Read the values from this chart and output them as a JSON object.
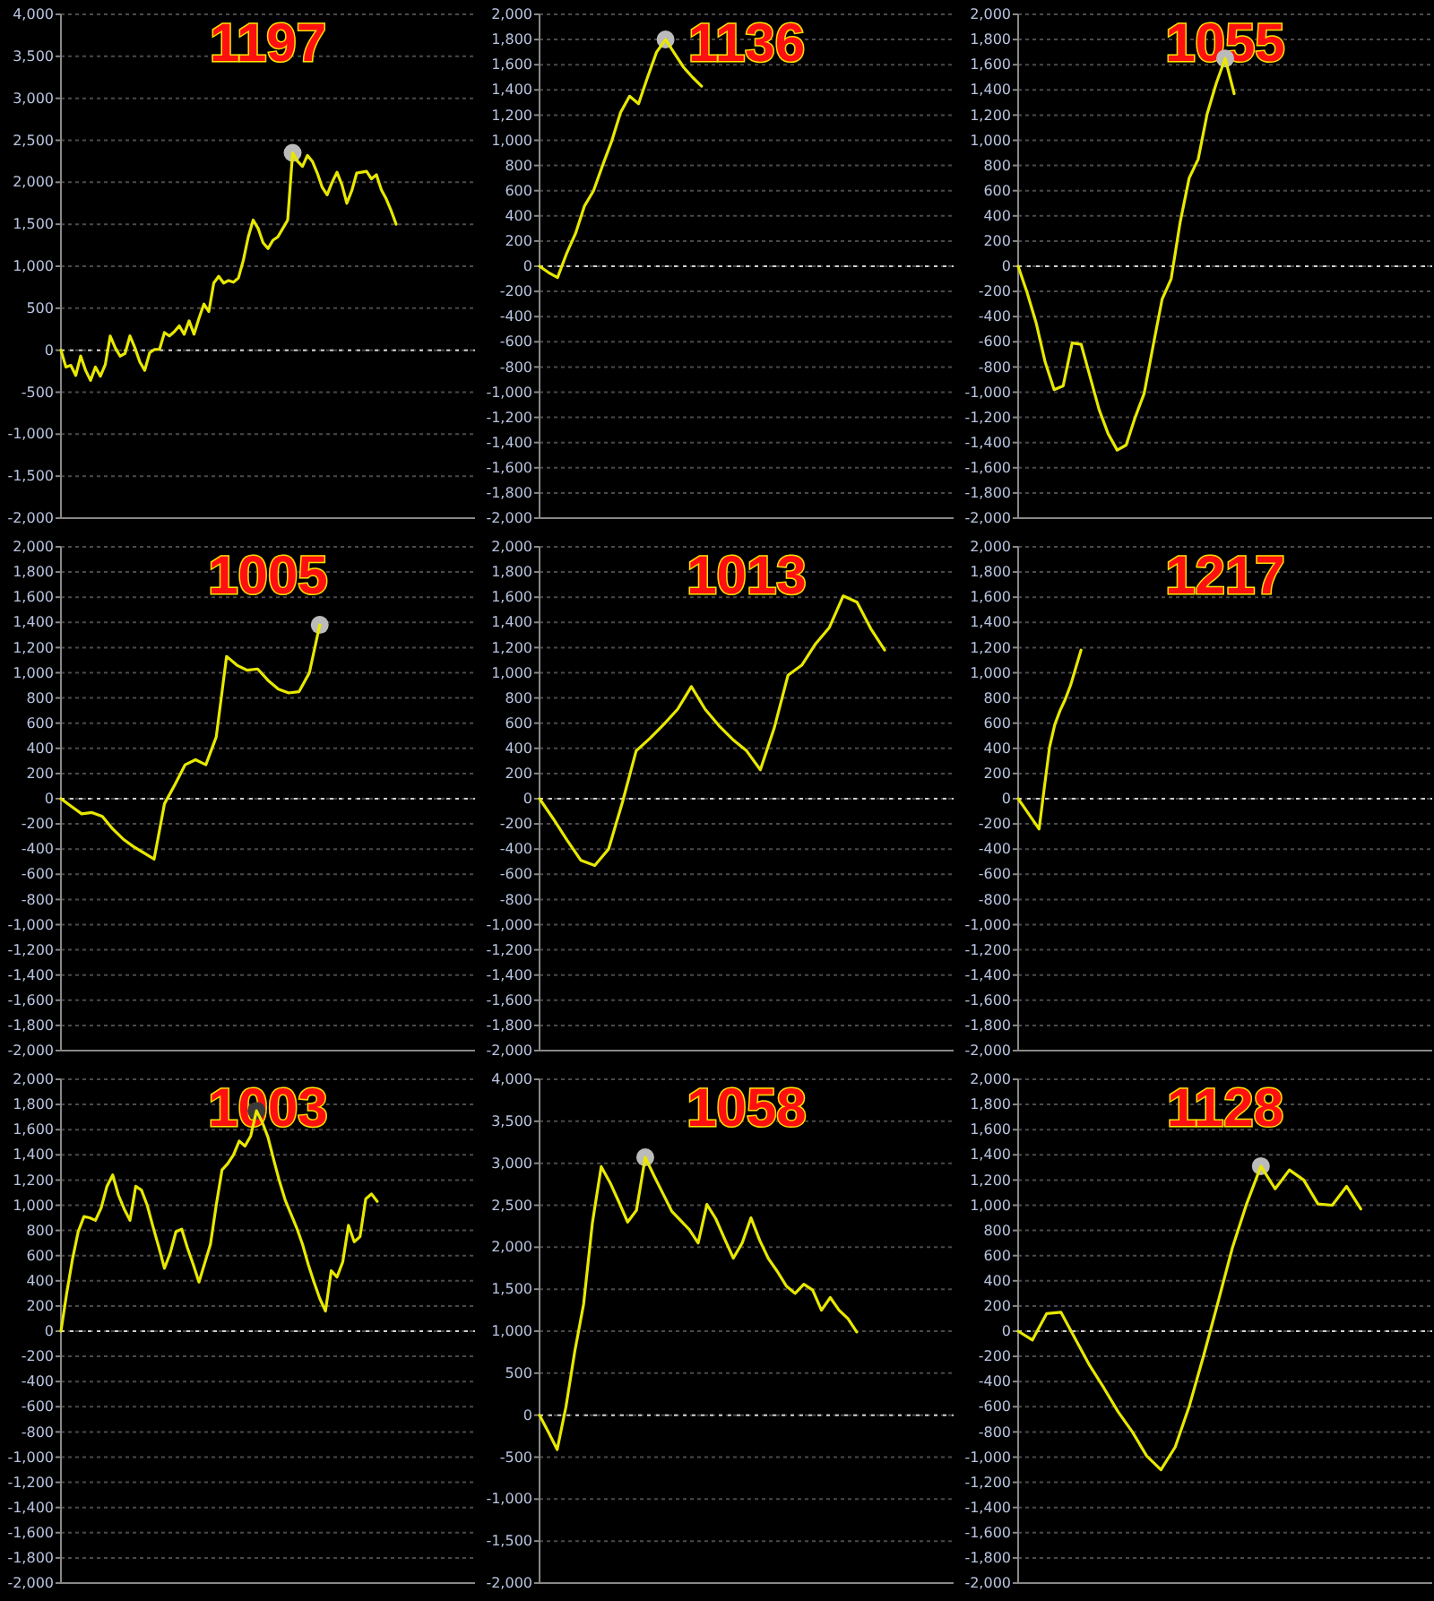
{
  "chart_data": [
    {
      "type": "line",
      "title": "1197",
      "tick_labels": "y",
      "grid": "y",
      "ylim": [
        -2000,
        4000
      ],
      "yticks": [
        {
          "value": -2000,
          "label": "-2,000"
        },
        {
          "value": -1500,
          "label": "-1,500"
        },
        {
          "value": -1000,
          "label": "-1,000"
        },
        -500,
        0,
        500,
        {
          "value": 1000,
          "label": "1,000"
        },
        {
          "value": 1500,
          "label": "1,500"
        },
        {
          "value": 2000,
          "label": "2,000"
        },
        {
          "value": 2500,
          "label": "2,500"
        },
        {
          "value": 3000,
          "label": "3,000"
        },
        {
          "value": 3500,
          "label": "3,500"
        },
        {
          "value": 4000,
          "label": "4,000"
        }
      ],
      "ref_lines": [
        {
          "axis": "y",
          "value": 0,
          "color": "#d0d0d0",
          "line_style": "dotted"
        }
      ],
      "categories": [
        null,
        null,
        null,
        null,
        null,
        null,
        null,
        null,
        null,
        null,
        null,
        null,
        null,
        null,
        null,
        null,
        null,
        null,
        null,
        null,
        null,
        null,
        null,
        null,
        null,
        null,
        null,
        null,
        null,
        null,
        null,
        null,
        null,
        null,
        null,
        null,
        null,
        null,
        null,
        null,
        null,
        null,
        null,
        null,
        null,
        null,
        null,
        null,
        null,
        null,
        null,
        null,
        null,
        null,
        null,
        null,
        null,
        null,
        null,
        null,
        null,
        null,
        null,
        null,
        null,
        null,
        null,
        null,
        null,
        null,
        null,
        null,
        null,
        null,
        null,
        null,
        null,
        null,
        null,
        null,
        null,
        null,
        null,
        null,
        null
      ],
      "series": [
        {
          "type": "line",
          "color": "#e8e800",
          "values": [
            0,
            -200,
            -180,
            -300,
            -70,
            -240,
            -360,
            -200,
            -310,
            -170,
            170,
            30,
            -70,
            -40,
            170,
            30,
            -140,
            -240,
            -30,
            10,
            10,
            210,
            170,
            220,
            290,
            190,
            350,
            190,
            380,
            550,
            460,
            800,
            880,
            800,
            830,
            810,
            860,
            1070,
            1350,
            1550,
            1450,
            1280,
            1210,
            1310,
            1350,
            1450,
            1550,
            2350,
            2250,
            2190,
            2320,
            2250,
            2110,
            1940,
            1850,
            2000,
            2120,
            1970,
            1750,
            1900,
            2110,
            2120,
            2130,
            2040,
            2090,
            1910,
            1800,
            1660,
            1500,
            null,
            null,
            null,
            null,
            null,
            null,
            null,
            null,
            null,
            null,
            null,
            null,
            null,
            null,
            null,
            null
          ]
        },
        {
          "type": "scatter",
          "color": "#bbbbbb",
          "marker": "circle",
          "values": [
            null,
            null,
            null,
            null,
            null,
            null,
            null,
            null,
            null,
            null,
            null,
            null,
            null,
            null,
            null,
            null,
            null,
            null,
            null,
            null,
            null,
            null,
            null,
            null,
            null,
            null,
            null,
            null,
            null,
            null,
            null,
            null,
            null,
            null,
            null,
            null,
            null,
            null,
            null,
            null,
            null,
            null,
            null,
            null,
            null,
            null,
            null,
            2350,
            null,
            null,
            null,
            null,
            null,
            null,
            null,
            null,
            null,
            null,
            null,
            null,
            null,
            null,
            null,
            null,
            null,
            null,
            null,
            null,
            null,
            null,
            null,
            null,
            null,
            null,
            null,
            null,
            null,
            null,
            null,
            null,
            null,
            null,
            null,
            null,
            null
          ]
        }
      ]
    },
    {
      "type": "line",
      "title": "1136",
      "tick_labels": "y",
      "grid": "y",
      "ylim": [
        -2000,
        2000
      ],
      "yticks": [
        {
          "value": -2000,
          "label": "-2,000"
        },
        {
          "value": -1800,
          "label": "-1,800"
        },
        {
          "value": -1600,
          "label": "-1,600"
        },
        {
          "value": -1400,
          "label": "-1,400"
        },
        {
          "value": -1200,
          "label": "-1,200"
        },
        {
          "value": -1000,
          "label": "-1,000"
        },
        -800,
        -600,
        -400,
        -200,
        0,
        200,
        400,
        600,
        800,
        {
          "value": 1000,
          "label": "1,000"
        },
        {
          "value": 1200,
          "label": "1,200"
        },
        {
          "value": 1400,
          "label": "1,400"
        },
        {
          "value": 1600,
          "label": "1,600"
        },
        {
          "value": 1800,
          "label": "1,800"
        },
        {
          "value": 2000,
          "label": "2,000"
        }
      ],
      "ref_lines": [
        {
          "axis": "y",
          "value": 0,
          "color": "#d0d0d0",
          "line_style": "dotted"
        }
      ],
      "categories": [
        null,
        null,
        null,
        null,
        null,
        null,
        null,
        null,
        null,
        null,
        null,
        null,
        null,
        null,
        null,
        null,
        null,
        null,
        null,
        null,
        null,
        null,
        null,
        null,
        null,
        null,
        null,
        null,
        null,
        null,
        null,
        null,
        null,
        null,
        null,
        null,
        null,
        null,
        null,
        null,
        null,
        null,
        null,
        null,
        null,
        null,
        null
      ],
      "series": [
        {
          "type": "line",
          "color": "#e8e800",
          "values": [
            0,
            -50,
            -90,
            100,
            260,
            480,
            600,
            800,
            990,
            1220,
            1350,
            1290,
            1500,
            1700,
            1800,
            1690,
            1580,
            1500,
            1430,
            null,
            null,
            null,
            null,
            null,
            null,
            null,
            null,
            null,
            null,
            null,
            null,
            null,
            null,
            null,
            null,
            null,
            null,
            null,
            null,
            null,
            null,
            null,
            null,
            null,
            null,
            null,
            null
          ]
        },
        {
          "type": "scatter",
          "color": "#bbbbbb",
          "marker": "circle",
          "values": [
            null,
            null,
            null,
            null,
            null,
            null,
            null,
            null,
            null,
            null,
            null,
            null,
            null,
            null,
            1800,
            null,
            null,
            null,
            null,
            null,
            null,
            null,
            null,
            null,
            null,
            null,
            null,
            null,
            null,
            null,
            null,
            null,
            null,
            null,
            null,
            null,
            null,
            null,
            null,
            null,
            null,
            null,
            null,
            null,
            null,
            null,
            null
          ]
        }
      ]
    },
    {
      "type": "line",
      "title": "1055",
      "tick_labels": "y",
      "grid": "y",
      "ylim": [
        -2000,
        2000
      ],
      "yticks": [
        {
          "value": -2000,
          "label": "-2,000"
        },
        {
          "value": -1800,
          "label": "-1,800"
        },
        {
          "value": -1600,
          "label": "-1,600"
        },
        {
          "value": -1400,
          "label": "-1,400"
        },
        {
          "value": -1200,
          "label": "-1,200"
        },
        {
          "value": -1000,
          "label": "-1,000"
        },
        -800,
        -600,
        -400,
        -200,
        0,
        200,
        400,
        600,
        800,
        {
          "value": 1000,
          "label": "1,000"
        },
        {
          "value": 1200,
          "label": "1,200"
        },
        {
          "value": 1400,
          "label": "1,400"
        },
        {
          "value": 1600,
          "label": "1,600"
        },
        {
          "value": 1800,
          "label": "1,800"
        },
        {
          "value": 2000,
          "label": "2,000"
        }
      ],
      "ref_lines": [
        {
          "axis": "y",
          "value": 0,
          "color": "#d0d0d0",
          "line_style": "dotted"
        }
      ],
      "categories": [
        null,
        null,
        null,
        null,
        null,
        null,
        null,
        null,
        null,
        null,
        null,
        null,
        null,
        null,
        null,
        null,
        null,
        null,
        null,
        null,
        null,
        null,
        null,
        null,
        null,
        null,
        null,
        null,
        null,
        null,
        null,
        null,
        null,
        null,
        null,
        null,
        null,
        null,
        null,
        null,
        null,
        null,
        null,
        null,
        null,
        null,
        null
      ],
      "series": [
        {
          "type": "line",
          "color": "#e8e800",
          "values": [
            0,
            -210,
            -450,
            -760,
            -980,
            -950,
            -610,
            -620,
            -880,
            -1140,
            -1330,
            -1460,
            -1420,
            -1200,
            -1010,
            -630,
            -260,
            -100,
            350,
            700,
            850,
            1210,
            1450,
            1650,
            1370,
            null,
            null,
            null,
            null,
            null,
            null,
            null,
            null,
            null,
            null,
            null,
            null,
            null,
            null,
            null,
            null,
            null,
            null,
            null,
            null,
            null,
            null
          ]
        },
        {
          "type": "scatter",
          "color": "#bbbbbb",
          "marker": "circle",
          "values": [
            null,
            null,
            null,
            null,
            null,
            null,
            null,
            null,
            null,
            null,
            null,
            null,
            null,
            null,
            null,
            null,
            null,
            null,
            null,
            null,
            null,
            null,
            null,
            1650,
            null,
            null,
            null,
            null,
            null,
            null,
            null,
            null,
            null,
            null,
            null,
            null,
            null,
            null,
            null,
            null,
            null,
            null,
            null,
            null,
            null,
            null,
            null
          ]
        }
      ]
    },
    {
      "type": "line",
      "title": "1005",
      "tick_labels": "y",
      "grid": "y",
      "ylim": [
        -2000,
        2000
      ],
      "yticks": [
        {
          "value": -2000,
          "label": "-2,000"
        },
        {
          "value": -1800,
          "label": "-1,800"
        },
        {
          "value": -1600,
          "label": "-1,600"
        },
        {
          "value": -1400,
          "label": "-1,400"
        },
        {
          "value": -1200,
          "label": "-1,200"
        },
        {
          "value": -1000,
          "label": "-1,000"
        },
        -800,
        -600,
        -400,
        -200,
        0,
        200,
        400,
        600,
        800,
        {
          "value": 1000,
          "label": "1,000"
        },
        {
          "value": 1200,
          "label": "1,200"
        },
        {
          "value": 1400,
          "label": "1,400"
        },
        {
          "value": 1600,
          "label": "1,600"
        },
        {
          "value": 1800,
          "label": "1,800"
        },
        {
          "value": 2000,
          "label": "2,000"
        }
      ],
      "ref_lines": [
        {
          "axis": "y",
          "value": 0,
          "color": "#d0d0d0",
          "line_style": "dotted"
        }
      ],
      "categories": [
        null,
        null,
        null,
        null,
        null,
        null,
        null,
        null,
        null,
        null,
        null,
        null,
        null,
        null,
        null,
        null,
        null,
        null,
        null,
        null,
        null,
        null,
        null,
        null,
        null,
        null,
        null,
        null,
        null,
        null,
        null,
        null,
        null,
        null,
        null,
        null,
        null,
        null,
        null,
        null,
        null
      ],
      "series": [
        {
          "type": "line",
          "color": "#e8e800",
          "values": [
            0,
            -60,
            -120,
            -110,
            -140,
            -240,
            -320,
            -380,
            -430,
            -480,
            -40,
            110,
            270,
            310,
            270,
            490,
            1130,
            1060,
            1020,
            1030,
            940,
            870,
            840,
            850,
            1000,
            1380,
            null,
            null,
            null,
            null,
            null,
            null,
            null,
            null,
            null,
            null,
            null,
            null,
            null,
            null,
            null
          ]
        },
        {
          "type": "scatter",
          "color": "#bbbbbb",
          "marker": "circle",
          "values": [
            null,
            null,
            null,
            null,
            null,
            null,
            null,
            null,
            null,
            null,
            null,
            null,
            null,
            null,
            null,
            null,
            null,
            null,
            null,
            null,
            null,
            null,
            null,
            null,
            null,
            1380,
            null,
            null,
            null,
            null,
            null,
            null,
            null,
            null,
            null,
            null,
            null,
            null,
            null,
            null,
            null
          ]
        }
      ]
    },
    {
      "type": "line",
      "title": "1013",
      "tick_labels": "y",
      "grid": "y",
      "ylim": [
        -2000,
        2000
      ],
      "yticks": [
        {
          "value": -2000,
          "label": "-2,000"
        },
        {
          "value": -1800,
          "label": "-1,800"
        },
        {
          "value": -1600,
          "label": "-1,600"
        },
        {
          "value": -1400,
          "label": "-1,400"
        },
        {
          "value": -1200,
          "label": "-1,200"
        },
        {
          "value": -1000,
          "label": "-1,000"
        },
        -800,
        -600,
        -400,
        -200,
        0,
        200,
        400,
        600,
        800,
        {
          "value": 1000,
          "label": "1,000"
        },
        {
          "value": 1200,
          "label": "1,200"
        },
        {
          "value": 1400,
          "label": "1,400"
        },
        {
          "value": 1600,
          "label": "1,600"
        },
        {
          "value": 1800,
          "label": "1,800"
        },
        {
          "value": 2000,
          "label": "2,000"
        }
      ],
      "ref_lines": [
        {
          "axis": "y",
          "value": 0,
          "color": "#d0d0d0",
          "line_style": "dotted"
        }
      ],
      "categories": [
        null,
        null,
        null,
        null,
        null,
        null,
        null,
        null,
        null,
        null,
        null,
        null,
        null,
        null,
        null,
        null,
        null,
        null,
        null,
        null,
        null,
        null,
        null,
        null,
        null,
        null,
        null,
        null,
        null,
        null,
        null
      ],
      "series": [
        {
          "type": "line",
          "color": "#e8e800",
          "values": [
            0,
            -160,
            -330,
            -490,
            -530,
            -400,
            -30,
            380,
            480,
            590,
            710,
            890,
            710,
            580,
            470,
            380,
            230,
            560,
            980,
            1060,
            1230,
            1360,
            1610,
            1560,
            1350,
            1180,
            null,
            null,
            null,
            null,
            null
          ]
        }
      ]
    },
    {
      "type": "line",
      "title": "1217",
      "tick_labels": "y",
      "grid": "y",
      "ylim": [
        -2000,
        2000
      ],
      "yticks": [
        {
          "value": -2000,
          "label": "-2,000"
        },
        {
          "value": -1800,
          "label": "-1,800"
        },
        {
          "value": -1600,
          "label": "-1,600"
        },
        {
          "value": -1400,
          "label": "-1,400"
        },
        {
          "value": -1200,
          "label": "-1,200"
        },
        {
          "value": -1000,
          "label": "-1,000"
        },
        -800,
        -600,
        -400,
        -200,
        0,
        200,
        400,
        600,
        800,
        {
          "value": 1000,
          "label": "1,000"
        },
        {
          "value": 1200,
          "label": "1,200"
        },
        {
          "value": 1400,
          "label": "1,400"
        },
        {
          "value": 1600,
          "label": "1,600"
        },
        {
          "value": 1800,
          "label": "1,800"
        },
        {
          "value": 2000,
          "label": "2,000"
        }
      ],
      "ref_lines": [
        {
          "axis": "y",
          "value": 0,
          "color": "#d0d0d0",
          "line_style": "dotted"
        }
      ],
      "categories": [
        null,
        null,
        null,
        null,
        null,
        null,
        null,
        null,
        null,
        null,
        null,
        null,
        null,
        null,
        null,
        null,
        null,
        null,
        null,
        null,
        null,
        null,
        null,
        null,
        null,
        null,
        null,
        null,
        null,
        null,
        null,
        null,
        null,
        null,
        null,
        null,
        null,
        null,
        null,
        null,
        null,
        null,
        null,
        null,
        null,
        null,
        null,
        null,
        null,
        null,
        null,
        null,
        null,
        null,
        null,
        null,
        null,
        null,
        null,
        null,
        null,
        null,
        null,
        null,
        null,
        null,
        null,
        null,
        null,
        null,
        null,
        null,
        null,
        null,
        null,
        null,
        null,
        null,
        null,
        null
      ],
      "series": [
        {
          "type": "line",
          "color": "#e8e800",
          "values": [
            0,
            -60,
            -120,
            -180,
            -240,
            90,
            410,
            590,
            700,
            790,
            900,
            1040,
            1180,
            null,
            null,
            null,
            null,
            null,
            null,
            null,
            null,
            null,
            null,
            null,
            null,
            null,
            null,
            null,
            null,
            null,
            null,
            null,
            null,
            null,
            null,
            null,
            null,
            null,
            null,
            null,
            null,
            null,
            null,
            null,
            null,
            null,
            null,
            null,
            null,
            null,
            null,
            null,
            null,
            null,
            null,
            null,
            null,
            null,
            null,
            null,
            null,
            null,
            null,
            null,
            null,
            null,
            null,
            null,
            null,
            null,
            null,
            null,
            null,
            null,
            null,
            null,
            null,
            null,
            null,
            null
          ]
        }
      ]
    },
    {
      "type": "line",
      "title": "1003",
      "tick_labels": "y",
      "grid": "y",
      "ylim": [
        -2000,
        2000
      ],
      "yticks": [
        {
          "value": -2000,
          "label": "-2,000"
        },
        {
          "value": -1800,
          "label": "-1,800"
        },
        {
          "value": -1600,
          "label": "-1,600"
        },
        {
          "value": -1400,
          "label": "-1,400"
        },
        {
          "value": -1200,
          "label": "-1,200"
        },
        {
          "value": -1000,
          "label": "-1,000"
        },
        -800,
        -600,
        -400,
        -200,
        0,
        200,
        400,
        600,
        800,
        {
          "value": 1000,
          "label": "1,000"
        },
        {
          "value": 1200,
          "label": "1,200"
        },
        {
          "value": 1400,
          "label": "1,400"
        },
        {
          "value": 1600,
          "label": "1,600"
        },
        {
          "value": 1800,
          "label": "1,800"
        },
        {
          "value": 2000,
          "label": "2,000"
        }
      ],
      "ref_lines": [
        {
          "axis": "y",
          "value": 0,
          "color": "#d0d0d0",
          "line_style": "dotted"
        }
      ],
      "categories": [
        null,
        null,
        null,
        null,
        null,
        null,
        null,
        null,
        null,
        null,
        null,
        null,
        null,
        null,
        null,
        null,
        null,
        null,
        null,
        null,
        null,
        null,
        null,
        null,
        null,
        null,
        null,
        null,
        null,
        null,
        null,
        null,
        null,
        null,
        null,
        null,
        null,
        null,
        null,
        null,
        null,
        null,
        null,
        null,
        null,
        null,
        null,
        null,
        null,
        null,
        null,
        null,
        null,
        null,
        null,
        null,
        null,
        null,
        null,
        null,
        null,
        null,
        null,
        null,
        null,
        null,
        null,
        null,
        null,
        null,
        null,
        null,
        null
      ],
      "series": [
        {
          "type": "line",
          "color": "#e8e800",
          "values": [
            0,
            300,
            570,
            790,
            910,
            900,
            880,
            980,
            1150,
            1240,
            1080,
            970,
            880,
            1150,
            1120,
            1000,
            830,
            670,
            500,
            620,
            790,
            810,
            660,
            530,
            390,
            540,
            690,
            1000,
            1280,
            1330,
            1400,
            1510,
            1470,
            1550,
            1750,
            1660,
            1540,
            1360,
            1190,
            1040,
            930,
            820,
            690,
            530,
            390,
            260,
            160,
            480,
            430,
            550,
            840,
            710,
            750,
            1050,
            1090,
            1030,
            null,
            null,
            null,
            null,
            null,
            null,
            null,
            null,
            null,
            null,
            null,
            null,
            null,
            null,
            null,
            null,
            null
          ]
        },
        {
          "type": "scatter",
          "color": "#3a3a3a",
          "marker": "circle",
          "values": [
            null,
            null,
            null,
            null,
            null,
            null,
            null,
            null,
            null,
            null,
            null,
            null,
            null,
            null,
            null,
            null,
            null,
            null,
            null,
            null,
            null,
            null,
            null,
            null,
            null,
            null,
            null,
            null,
            null,
            null,
            null,
            null,
            null,
            null,
            1750,
            null,
            null,
            null,
            null,
            null,
            null,
            null,
            null,
            null,
            null,
            null,
            null,
            null,
            null,
            null,
            null,
            null,
            null,
            null,
            null,
            null,
            null,
            null,
            null,
            null,
            null,
            null,
            null,
            null,
            null,
            null,
            null,
            null,
            null,
            null,
            null,
            null,
            null
          ]
        }
      ]
    },
    {
      "type": "line",
      "title": "1058",
      "tick_labels": "y",
      "grid": "y",
      "ylim": [
        -2000,
        4000
      ],
      "yticks": [
        {
          "value": -2000,
          "label": "-2,000"
        },
        {
          "value": -1500,
          "label": "-1,500"
        },
        {
          "value": -1000,
          "label": "-1,000"
        },
        -500,
        0,
        500,
        {
          "value": 1000,
          "label": "1,000"
        },
        {
          "value": 1500,
          "label": "1,500"
        },
        {
          "value": 2000,
          "label": "2,000"
        },
        {
          "value": 2500,
          "label": "2,500"
        },
        {
          "value": 3000,
          "label": "3,000"
        },
        {
          "value": 3500,
          "label": "3,500"
        },
        {
          "value": 4000,
          "label": "4,000"
        }
      ],
      "ref_lines": [
        {
          "axis": "y",
          "value": 0,
          "color": "#d0d0d0",
          "line_style": "dotted"
        }
      ],
      "categories": [
        null,
        null,
        null,
        null,
        null,
        null,
        null,
        null,
        null,
        null,
        null,
        null,
        null,
        null,
        null,
        null,
        null,
        null,
        null,
        null,
        null,
        null,
        null,
        null,
        null,
        null,
        null,
        null,
        null,
        null,
        null,
        null,
        null,
        null,
        null,
        null,
        null,
        null,
        null,
        null,
        null,
        null,
        null,
        null,
        null,
        null,
        null,
        null
      ],
      "series": [
        {
          "type": "line",
          "color": "#e8e800",
          "values": [
            0,
            -200,
            -410,
            100,
            760,
            1320,
            2290,
            2960,
            2770,
            2540,
            2300,
            2440,
            3070,
            2850,
            2640,
            2430,
            2320,
            2210,
            2050,
            2510,
            2340,
            2100,
            1870,
            2050,
            2350,
            2080,
            1860,
            1710,
            1540,
            1450,
            1560,
            1490,
            1250,
            1400,
            1250,
            1150,
            990,
            null,
            null,
            null,
            null,
            null,
            null,
            null,
            null,
            null,
            null,
            null
          ]
        },
        {
          "type": "scatter",
          "color": "#bbbbbb",
          "marker": "circle",
          "values": [
            null,
            null,
            null,
            null,
            null,
            null,
            null,
            null,
            null,
            null,
            null,
            null,
            3070,
            null,
            null,
            null,
            null,
            null,
            null,
            null,
            null,
            null,
            null,
            null,
            null,
            null,
            null,
            null,
            null,
            null,
            null,
            null,
            null,
            null,
            null,
            null,
            null,
            null,
            null,
            null,
            null,
            null,
            null,
            null,
            null,
            null,
            null,
            null
          ]
        }
      ]
    },
    {
      "type": "line",
      "title": "1128",
      "tick_labels": "y",
      "grid": "y",
      "ylim": [
        -2000,
        2000
      ],
      "yticks": [
        {
          "value": -2000,
          "label": "-2,000"
        },
        {
          "value": -1800,
          "label": "-1,800"
        },
        {
          "value": -1600,
          "label": "-1,600"
        },
        {
          "value": -1400,
          "label": "-1,400"
        },
        {
          "value": -1200,
          "label": "-1,200"
        },
        {
          "value": -1000,
          "label": "-1,000"
        },
        -800,
        -600,
        -400,
        -200,
        0,
        200,
        400,
        600,
        800,
        {
          "value": 1000,
          "label": "1,000"
        },
        {
          "value": 1200,
          "label": "1,200"
        },
        {
          "value": 1400,
          "label": "1,400"
        },
        {
          "value": 1600,
          "label": "1,600"
        },
        {
          "value": 1800,
          "label": "1,800"
        },
        {
          "value": 2000,
          "label": "2,000"
        }
      ],
      "ref_lines": [
        {
          "axis": "y",
          "value": 0,
          "color": "#d0d0d0",
          "line_style": "dotted"
        }
      ],
      "categories": [
        null,
        null,
        null,
        null,
        null,
        null,
        null,
        null,
        null,
        null,
        null,
        null,
        null,
        null,
        null,
        null,
        null,
        null,
        null,
        null,
        null,
        null,
        null,
        null,
        null,
        null,
        null,
        null,
        null,
        null
      ],
      "series": [
        {
          "type": "line",
          "color": "#e8e800",
          "values": [
            0,
            -70,
            140,
            150,
            -60,
            -270,
            -450,
            -640,
            -800,
            -990,
            -1100,
            -920,
            -590,
            -190,
            230,
            660,
            1010,
            1310,
            1130,
            1280,
            1200,
            1010,
            1000,
            1150,
            970,
            null,
            null,
            null,
            null,
            null
          ]
        },
        {
          "type": "scatter",
          "color": "#bbbbbb",
          "marker": "circle",
          "values": [
            null,
            null,
            null,
            null,
            null,
            null,
            null,
            null,
            null,
            null,
            null,
            null,
            null,
            null,
            null,
            null,
            null,
            1310,
            null,
            null,
            null,
            null,
            null,
            null,
            null,
            null,
            null,
            null,
            null,
            null
          ]
        }
      ]
    }
  ]
}
